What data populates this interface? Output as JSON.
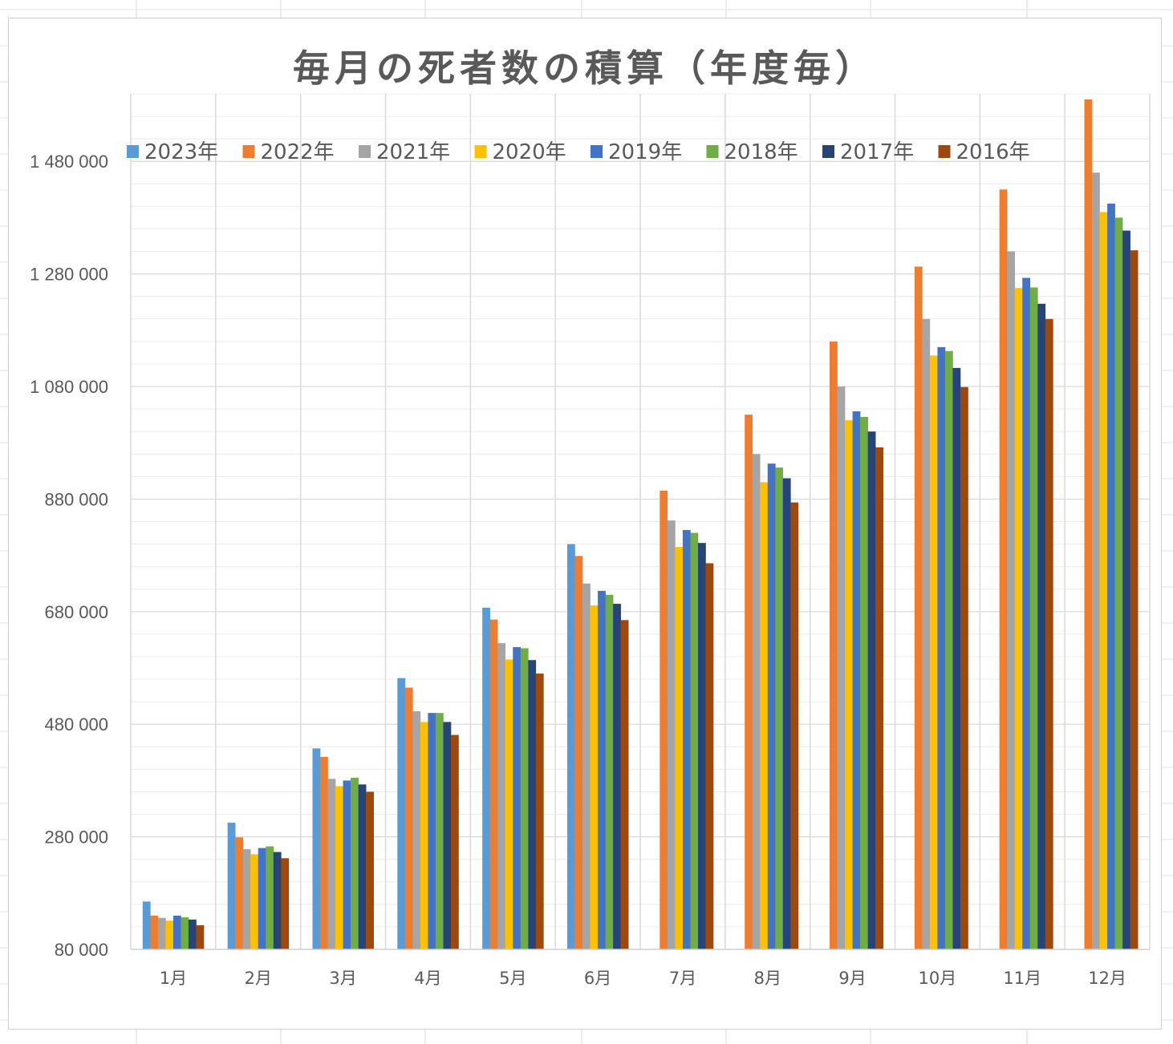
{
  "chart_data": {
    "type": "bar",
    "title": "毎月の死者数の積算（年度毎）",
    "xlabel": "",
    "ylabel": "",
    "ylim": [
      80000,
      1600000
    ],
    "yticks": [
      80000,
      280000,
      480000,
      680000,
      880000,
      1080000,
      1280000,
      1480000
    ],
    "ytick_labels": [
      "80 000",
      "280 000",
      "480 000",
      "680 000",
      "880 000",
      "1 080 000",
      "1 280 000",
      "1 480 000"
    ],
    "categories": [
      "1月",
      "2月",
      "3月",
      "4月",
      "5月",
      "6月",
      "7月",
      "8月",
      "9月",
      "10月",
      "11月",
      "12月"
    ],
    "grid": true,
    "legend_position": "top",
    "series": [
      {
        "name": "2023年",
        "color": "#5B9BD5",
        "values": [
          165000,
          305000,
          437000,
          562000,
          687000,
          800000,
          null,
          null,
          null,
          null,
          null,
          null
        ]
      },
      {
        "name": "2022年",
        "color": "#ED7D31",
        "values": [
          140000,
          279000,
          422000,
          545000,
          666000,
          779000,
          895000,
          1030000,
          1160000,
          1293000,
          1430000,
          1590000
        ]
      },
      {
        "name": "2021年",
        "color": "#A5A5A5",
        "values": [
          136000,
          258000,
          383000,
          503000,
          624000,
          730000,
          842000,
          960000,
          1080000,
          1200000,
          1320000,
          1460000
        ]
      },
      {
        "name": "2020年",
        "color": "#FFC000",
        "values": [
          131000,
          249000,
          370000,
          484000,
          595000,
          691000,
          795000,
          910000,
          1020000,
          1135000,
          1255000,
          1390000
        ]
      },
      {
        "name": "2019年",
        "color": "#4472C4",
        "values": [
          140000,
          260000,
          380000,
          500000,
          617000,
          717000,
          825000,
          943000,
          1036000,
          1150000,
          1273000,
          1405000
        ]
      },
      {
        "name": "2018年",
        "color": "#70AD47",
        "values": [
          137000,
          263000,
          385000,
          500000,
          615000,
          710000,
          820000,
          936000,
          1026000,
          1143000,
          1256000,
          1380000
        ]
      },
      {
        "name": "2017年",
        "color": "#264478",
        "values": [
          133000,
          253000,
          373000,
          484000,
          594000,
          694000,
          802000,
          917000,
          1000000,
          1113000,
          1227000,
          1357000
        ]
      },
      {
        "name": "2016年",
        "color": "#9E480E",
        "values": [
          123000,
          242000,
          360000,
          461000,
          570000,
          665000,
          766000,
          874000,
          972000,
          1079000,
          1200000,
          1322000
        ]
      }
    ]
  }
}
